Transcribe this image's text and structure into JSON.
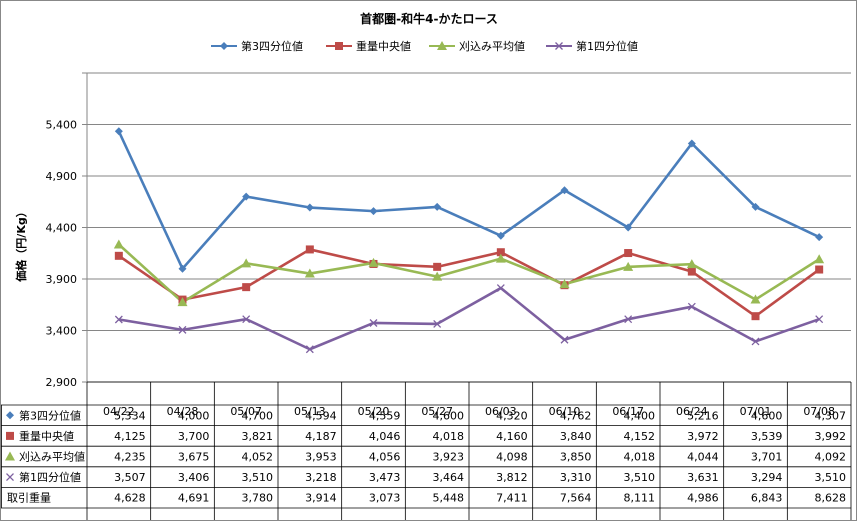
{
  "chart_data": {
    "type": "line",
    "title": "首都圏-和牛4-かたロース",
    "ylabel": "価格（円/Kg）",
    "xlabel": "",
    "ylim": [
      2900,
      5900
    ],
    "yticks": [
      "2,900",
      "3,400",
      "3,900",
      "4,400",
      "4,900",
      "5,400"
    ],
    "grid": true,
    "legend_position": "top",
    "categories": [
      "04/22",
      "04/28",
      "05/07",
      "05/13",
      "05/20",
      "05/27",
      "06/03",
      "06/10",
      "06/17",
      "06/24",
      "07/01",
      "07/08"
    ],
    "series": [
      {
        "name": "第3四分位値",
        "color": "#4a7ebb",
        "marker": "diamond",
        "values": [
          5334,
          4000,
          4700,
          4594,
          4559,
          4600,
          4320,
          4762,
          4400,
          5216,
          4600,
          4307
        ],
        "labels": [
          "5,334",
          "4,000",
          "4,700",
          "4,594",
          "4,559",
          "4,600",
          "4,320",
          "4,762",
          "4,400",
          "5,216",
          "4,600",
          "4,307"
        ]
      },
      {
        "name": "重量中央値",
        "color": "#be4b48",
        "marker": "square",
        "values": [
          4125,
          3700,
          3821,
          4187,
          4046,
          4018,
          4160,
          3840,
          4152,
          3972,
          3539,
          3992
        ],
        "labels": [
          "4,125",
          "3,700",
          "3,821",
          "4,187",
          "4,046",
          "4,018",
          "4,160",
          "3,840",
          "4,152",
          "3,972",
          "3,539",
          "3,992"
        ]
      },
      {
        "name": "刈込み平均値",
        "color": "#98b954",
        "marker": "triangle",
        "values": [
          4235,
          3675,
          4052,
          3953,
          4056,
          3923,
          4098,
          3850,
          4018,
          4044,
          3701,
          4092
        ],
        "labels": [
          "4,235",
          "3,675",
          "4,052",
          "3,953",
          "4,056",
          "3,923",
          "4,098",
          "3,850",
          "4,018",
          "4,044",
          "3,701",
          "4,092"
        ]
      },
      {
        "name": "第1四分位値",
        "color": "#7d60a0",
        "marker": "x",
        "values": [
          3507,
          3406,
          3510,
          3218,
          3473,
          3464,
          3812,
          3310,
          3510,
          3631,
          3294,
          3510
        ],
        "labels": [
          "3,507",
          "3,406",
          "3,510",
          "3,218",
          "3,473",
          "3,464",
          "3,812",
          "3,310",
          "3,510",
          "3,631",
          "3,294",
          "3,510"
        ]
      }
    ],
    "table_extra": {
      "name": "取引重量",
      "values": [
        "4,628",
        "4,691",
        "3,780",
        "3,914",
        "3,073",
        "5,448",
        "7,411",
        "7,564",
        "8,111",
        "4,986",
        "6,843",
        "8,628"
      ]
    }
  }
}
